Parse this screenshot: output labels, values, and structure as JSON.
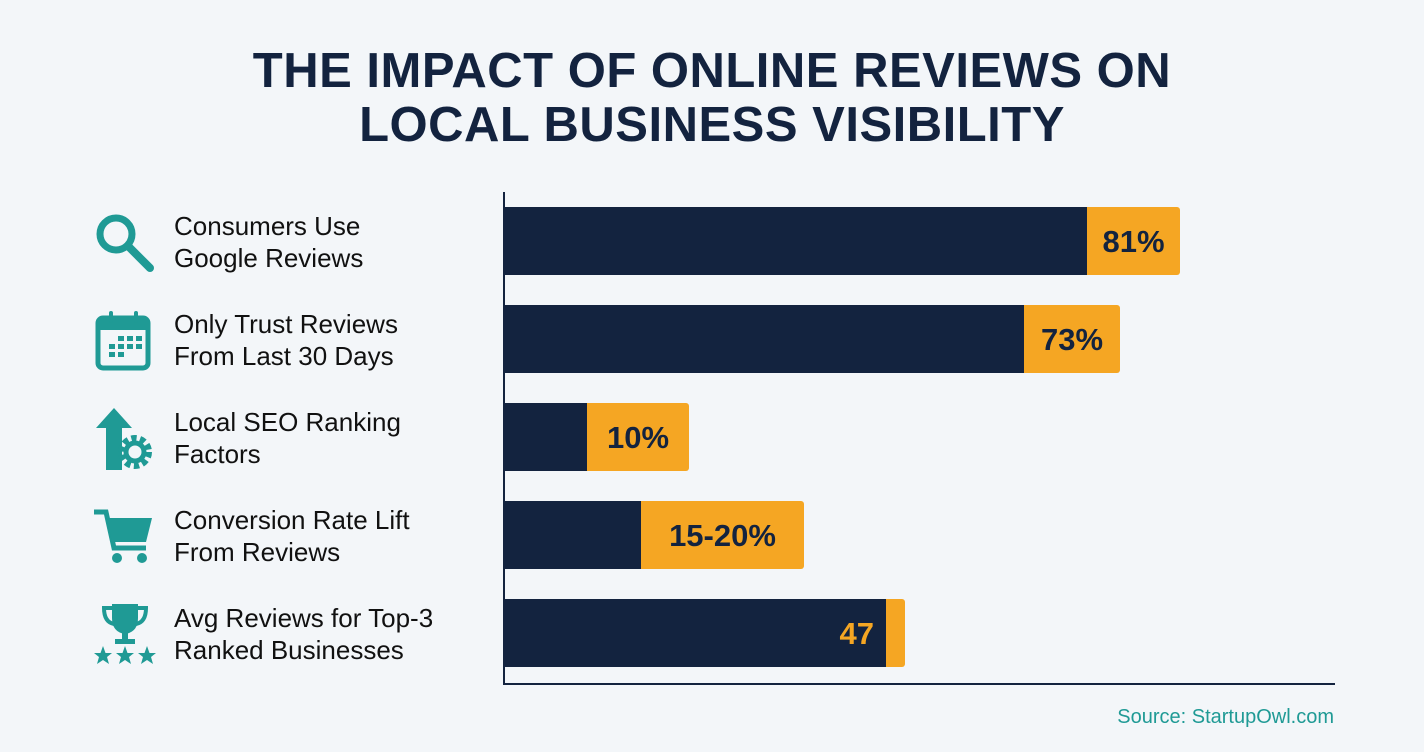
{
  "title_lines": [
    "THE IMPACT OF ONLINE REVIEWS ON",
    "LOCAL BUSINESS VISIBILITY"
  ],
  "source": "Source: StartupOwl.com",
  "colors": {
    "navy": "#13233f",
    "orange": "#f5a623",
    "teal": "#1f9a95",
    "background": "#f3f6f9"
  },
  "chart_data": {
    "type": "bar",
    "orientation": "horizontal",
    "title": "THE IMPACT OF ONLINE REVIEWS ON LOCAL BUSINESS VISIBILITY",
    "categories": [
      [
        "Consumers Use",
        "Google Reviews"
      ],
      [
        "Only Trust Reviews",
        "From Last 30 Days"
      ],
      [
        "Local SEO Ranking",
        "Factors"
      ],
      [
        "Conversion Rate Lift",
        "From Reviews"
      ],
      [
        "Avg Reviews for Top-3",
        "Ranked Businesses"
      ]
    ],
    "icons": [
      "search-icon",
      "calendar-icon",
      "arrow-up-gear-icon",
      "shopping-cart-icon",
      "trophy-stars-icon"
    ],
    "values": [
      81,
      73,
      10,
      17.5,
      47
    ],
    "value_labels": [
      "81%",
      "73%",
      "10%",
      "15-20%",
      "47"
    ],
    "grid": false,
    "xlabel": "",
    "ylabel": ""
  }
}
